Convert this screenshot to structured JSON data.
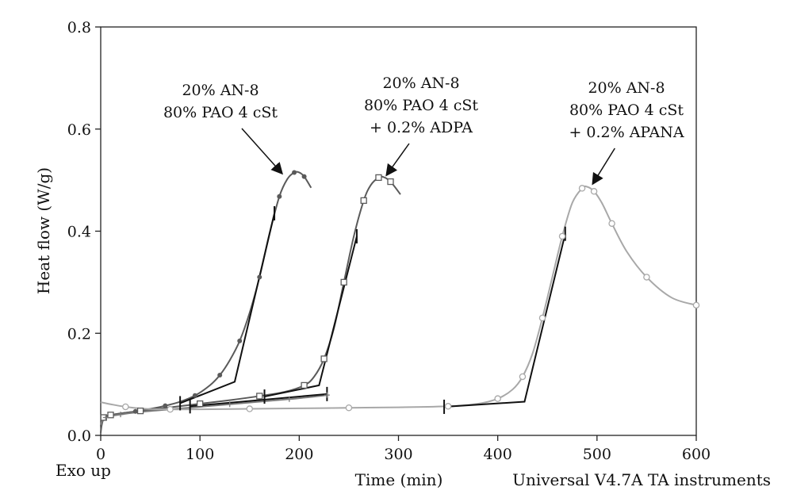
{
  "chart_data": {
    "type": "line",
    "xlabel": "Time (min)",
    "ylabel": "Heat flow (W/g)",
    "xlim": [
      0,
      600
    ],
    "ylim": [
      0,
      0.8
    ],
    "xticks": [
      "0",
      "100",
      "200",
      "300",
      "400",
      "500",
      "600"
    ],
    "yticks": [
      "0.0",
      "0.2",
      "0.4",
      "0.6",
      "0.8"
    ],
    "grid": false,
    "footer_left": "Exo up",
    "footer_right": "Universal V4.7A TA instruments",
    "annotations": [
      {
        "lines": [
          "20% AN-8",
          "80% PAO 4 cSt"
        ],
        "x": 197,
        "y": 0.515
      },
      {
        "lines": [
          "20% AN-8",
          "80% PAO 4 cSt",
          "+ 0.2% ADPA"
        ],
        "x": 283,
        "y": 0.505
      },
      {
        "lines": [
          "20% AN-8",
          "80% PAO 4 cSt",
          "+ 0.2% APANA"
        ],
        "x": 490,
        "y": 0.487
      }
    ],
    "series": [
      {
        "marker": "filled-circle",
        "color": "#5a5a5a",
        "x": [
          0,
          1,
          3,
          6,
          10,
          20,
          35,
          50,
          65,
          80,
          95,
          110,
          120,
          130,
          140,
          150,
          160,
          170,
          180,
          188,
          195,
          200,
          205,
          212
        ],
        "y": [
          0.005,
          0.02,
          0.033,
          0.038,
          0.04,
          0.043,
          0.047,
          0.052,
          0.058,
          0.066,
          0.078,
          0.098,
          0.118,
          0.147,
          0.185,
          0.24,
          0.31,
          0.395,
          0.468,
          0.502,
          0.515,
          0.515,
          0.507,
          0.485
        ],
        "onset_tangent": [
          [
            80,
            0.063
          ],
          [
            135,
            0.105
          ],
          [
            175,
            0.435
          ]
        ]
      },
      {
        "marker": "open-square",
        "color": "#5a5a5a",
        "x": [
          0,
          1,
          3,
          6,
          10,
          20,
          40,
          70,
          100,
          130,
          160,
          185,
          205,
          215,
          225,
          235,
          245,
          255,
          265,
          272,
          280,
          285,
          292,
          302
        ],
        "y": [
          0.018,
          0.03,
          0.035,
          0.038,
          0.04,
          0.043,
          0.048,
          0.055,
          0.062,
          0.069,
          0.077,
          0.085,
          0.098,
          0.115,
          0.15,
          0.21,
          0.3,
          0.39,
          0.46,
          0.49,
          0.505,
          0.506,
          0.497,
          0.472
        ],
        "onset_tangent": [
          [
            165,
            0.076
          ],
          [
            220,
            0.098
          ],
          [
            258,
            0.39
          ]
        ]
      },
      {
        "marker": "plus",
        "color": "#7a7a7a",
        "x": [
          0,
          2,
          5,
          10,
          20,
          40,
          70,
          100,
          130,
          160,
          190,
          215,
          228
        ],
        "y": [
          0.02,
          0.03,
          0.035,
          0.038,
          0.041,
          0.046,
          0.051,
          0.056,
          0.061,
          0.066,
          0.071,
          0.076,
          0.079
        ],
        "onset_tangent": [
          [
            90,
            0.057
          ],
          [
            228,
            0.081
          ]
        ]
      },
      {
        "marker": "open-circle",
        "color": "#a8a8a8",
        "x": [
          0,
          10,
          25,
          45,
          70,
          100,
          150,
          200,
          250,
          300,
          350,
          380,
          400,
          415,
          425,
          435,
          445,
          455,
          465,
          475,
          485,
          490,
          497,
          505,
          515,
          530,
          550,
          575,
          600
        ],
        "y": [
          0.065,
          0.061,
          0.056,
          0.052,
          0.051,
          0.051,
          0.052,
          0.053,
          0.054,
          0.055,
          0.057,
          0.062,
          0.072,
          0.09,
          0.115,
          0.16,
          0.23,
          0.31,
          0.39,
          0.455,
          0.484,
          0.487,
          0.478,
          0.455,
          0.415,
          0.36,
          0.31,
          0.27,
          0.255
        ],
        "onset_tangent": [
          [
            346,
            0.056
          ],
          [
            427,
            0.066
          ],
          [
            468,
            0.395
          ]
        ]
      }
    ]
  }
}
